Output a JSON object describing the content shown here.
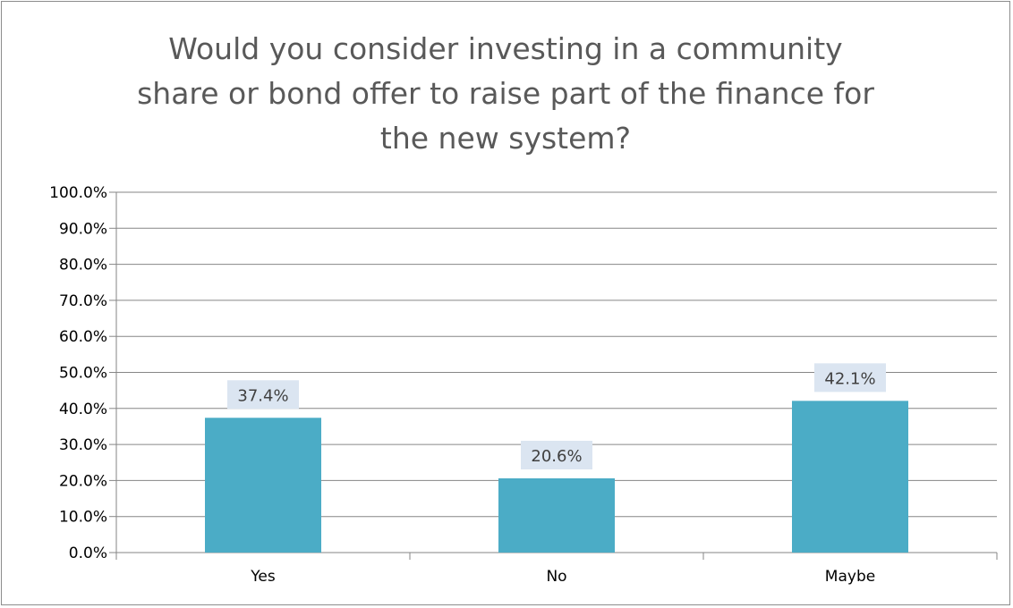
{
  "chart_data": {
    "type": "bar",
    "title": "Would you consider investing in a community\nshare or bond  offer to raise part of the finance for\nthe new system?",
    "categories": [
      "Yes",
      "No",
      "Maybe"
    ],
    "values": [
      37.4,
      20.6,
      42.1
    ],
    "data_labels": [
      "37.4%",
      "20.6%",
      "42.1%"
    ],
    "ylim": [
      0,
      100
    ],
    "yticks": [
      "0.0%",
      "10.0%",
      "20.0%",
      "30.0%",
      "40.0%",
      "50.0%",
      "60.0%",
      "70.0%",
      "80.0%",
      "90.0%",
      "100.0%"
    ],
    "grid": true,
    "legend": "none",
    "bar_color": "#4bacc6",
    "label_bg_color": "#dbe5f1",
    "gridline_color": "#868686"
  }
}
